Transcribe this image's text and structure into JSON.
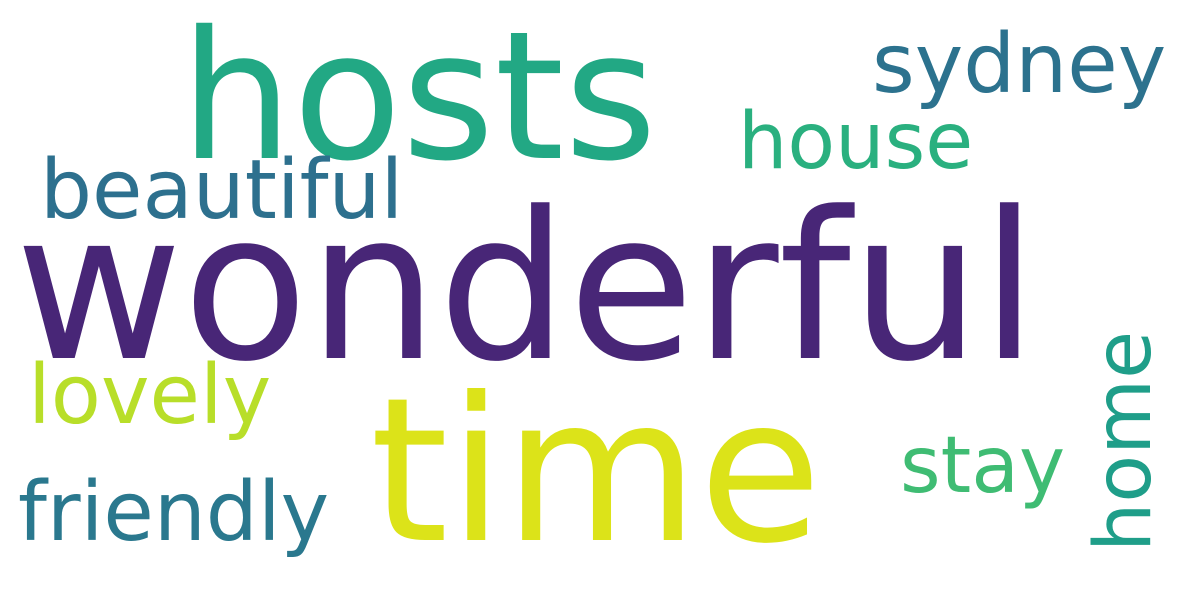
{
  "words": [
    {
      "text": "hosts",
      "color": "#22a884"
    },
    {
      "text": "sydney",
      "color": "#2c728e"
    },
    {
      "text": "house",
      "color": "#2ab07f"
    },
    {
      "text": "beautiful",
      "color": "#2d708e"
    },
    {
      "text": "wonderful",
      "color": "#482677"
    },
    {
      "text": "lovely",
      "color": "#b8de29"
    },
    {
      "text": "time",
      "color": "#dce319"
    },
    {
      "text": "stay",
      "color": "#3fbc73"
    },
    {
      "text": "home",
      "color": "#1f9e89"
    },
    {
      "text": "friendly",
      "color": "#2a788e"
    }
  ]
}
